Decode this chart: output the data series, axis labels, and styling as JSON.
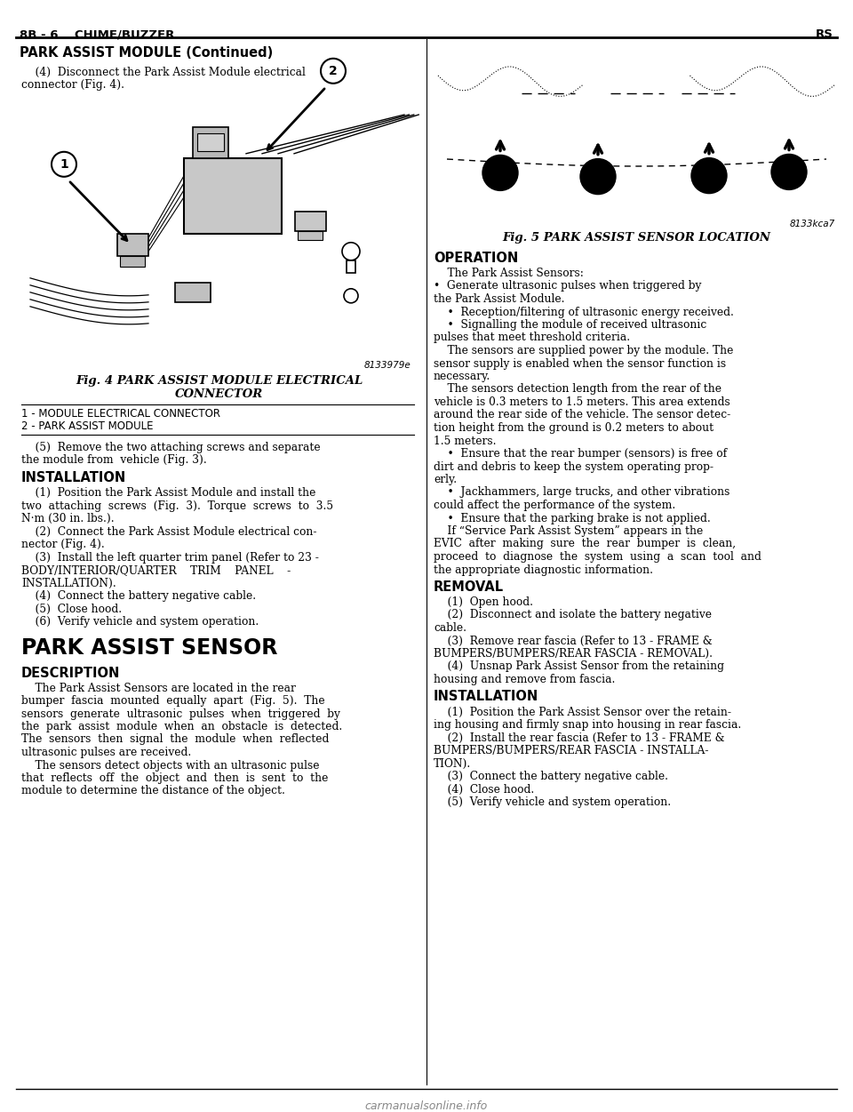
{
  "page_bg": "#ffffff",
  "header_left": "8B - 6    CHIME/BUZZER",
  "header_right": "RS",
  "section_title": "PARK ASSIST MODULE (Continued)",
  "fig4_code": "8133979e",
  "fig4_caption1": "Fig. 4 PARK ASSIST MODULE ELECTRICAL",
  "fig4_caption2": "CONNECTOR",
  "fig4_legend_1": "1 - MODULE ELECTRICAL CONNECTOR",
  "fig4_legend_2": "2 - PARK ASSIST MODULE",
  "fig5_code": "8133kca7",
  "fig5_caption": "Fig. 5 PARK ASSIST SENSOR LOCATION",
  "watermark": "carmanualsonline.info",
  "left_lines": [
    [
      "    (4)  Disconnect the Park Assist Module electrical",
      "normal"
    ],
    [
      "connector (Fig. 4).",
      "normal"
    ],
    [
      "FIGURE4",
      "figure"
    ],
    [
      "    (5)  Remove the two attaching screws and separate",
      "normal"
    ],
    [
      "the module from  vehicle (Fig. 3).",
      "normal"
    ],
    [
      "INSTALLATION",
      "heading"
    ],
    [
      "    (1)  Position the Park Assist Module and install the",
      "normal"
    ],
    [
      "two  attaching  screws  (Fig.  3).  Torque  screws  to  3.5",
      "normal"
    ],
    [
      "N·m (30 in. lbs.).",
      "normal"
    ],
    [
      "    (2)  Connect the Park Assist Module electrical con-",
      "normal"
    ],
    [
      "nector (Fig. 4).",
      "normal"
    ],
    [
      "    (3)  Install the left quarter trim panel (Refer to 23 -",
      "normal"
    ],
    [
      "BODY/INTERIOR/QUARTER    TRIM    PANEL    -",
      "normal"
    ],
    [
      "INSTALLATION).",
      "normal"
    ],
    [
      "    (4)  Connect the battery negative cable.",
      "normal"
    ],
    [
      "    (5)  Close hood.",
      "normal"
    ],
    [
      "    (6)  Verify vehicle and system operation.",
      "normal"
    ],
    [
      "PARK ASSIST SENSOR",
      "big_heading"
    ],
    [
      "DESCRIPTION",
      "heading"
    ],
    [
      "    The Park Assist Sensors are located in the rear",
      "normal"
    ],
    [
      "bumper  fascia  mounted  equally  apart  (Fig.  5).  The",
      "normal"
    ],
    [
      "sensors  generate  ultrasonic  pulses  when  triggered  by",
      "normal"
    ],
    [
      "the  park  assist  module  when  an  obstacle  is  detected.",
      "normal"
    ],
    [
      "The  sensors  then  signal  the  module  when  reflected",
      "normal"
    ],
    [
      "ultrasonic pulses are received.",
      "normal"
    ],
    [
      "    The sensors detect objects with an ultrasonic pulse",
      "normal"
    ],
    [
      "that  reflects  off  the  object  and  then  is  sent  to  the",
      "normal"
    ],
    [
      "module to determine the distance of the object.",
      "normal"
    ]
  ],
  "right_lines": [
    [
      "FIGURE5",
      "figure"
    ],
    [
      "Fig. 5 PARK ASSIST SENSOR LOCATION",
      "fig_caption"
    ],
    [
      "OPERATION",
      "heading"
    ],
    [
      "    The Park Assist Sensors:",
      "normal"
    ],
    [
      "•  Generate ultrasonic pulses when triggered by",
      "normal"
    ],
    [
      "the Park Assist Module.",
      "normal"
    ],
    [
      "    •  Reception/filtering of ultrasonic energy received.",
      "normal"
    ],
    [
      "    •  Signalling the module of received ultrasonic",
      "normal"
    ],
    [
      "pulses that meet threshold criteria.",
      "normal"
    ],
    [
      "    The sensors are supplied power by the module. The",
      "normal"
    ],
    [
      "sensor supply is enabled when the sensor function is",
      "normal"
    ],
    [
      "necessary.",
      "normal"
    ],
    [
      "    The sensors detection length from the rear of the",
      "normal"
    ],
    [
      "vehicle is 0.3 meters to 1.5 meters. This area extends",
      "normal"
    ],
    [
      "around the rear side of the vehicle. The sensor detec-",
      "normal"
    ],
    [
      "tion height from the ground is 0.2 meters to about",
      "normal"
    ],
    [
      "1.5 meters.",
      "normal"
    ],
    [
      "    •  Ensure that the rear bumper (sensors) is free of",
      "normal"
    ],
    [
      "dirt and debris to keep the system operating prop-",
      "normal"
    ],
    [
      "erly.",
      "normal"
    ],
    [
      "    •  Jackhammers, large trucks, and other vibrations",
      "normal"
    ],
    [
      "could affect the performance of the system.",
      "normal"
    ],
    [
      "    •  Ensure that the parking brake is not applied.",
      "normal"
    ],
    [
      "    If “Service Park Assist System” appears in the",
      "normal"
    ],
    [
      "EVIC  after  making  sure  the  rear  bumper  is  clean,",
      "normal"
    ],
    [
      "proceed  to  diagnose  the  system  using  a  scan  tool  and",
      "normal"
    ],
    [
      "the appropriate diagnostic information.",
      "normal"
    ],
    [
      "REMOVAL",
      "heading"
    ],
    [
      "    (1)  Open hood.",
      "normal"
    ],
    [
      "    (2)  Disconnect and isolate the battery negative",
      "normal"
    ],
    [
      "cable.",
      "normal"
    ],
    [
      "    (3)  Remove rear fascia (Refer to 13 - FRAME &",
      "normal"
    ],
    [
      "BUMPERS/BUMPERS/REAR FASCIA - REMOVAL).",
      "normal"
    ],
    [
      "    (4)  Unsnap Park Assist Sensor from the retaining",
      "normal"
    ],
    [
      "housing and remove from fascia.",
      "normal"
    ],
    [
      "INSTALLATION",
      "heading"
    ],
    [
      "    (1)  Position the Park Assist Sensor over the retain-",
      "normal"
    ],
    [
      "ing housing and firmly snap into housing in rear fascia.",
      "normal"
    ],
    [
      "    (2)  Install the rear fascia (Refer to 13 - FRAME &",
      "normal"
    ],
    [
      "BUMPERS/BUMPERS/REAR FASCIA - INSTALLA-",
      "normal"
    ],
    [
      "TION).",
      "normal"
    ],
    [
      "    (3)  Connect the battery negative cable.",
      "normal"
    ],
    [
      "    (4)  Close hood.",
      "normal"
    ],
    [
      "    (5)  Verify vehicle and system operation.",
      "normal"
    ]
  ]
}
